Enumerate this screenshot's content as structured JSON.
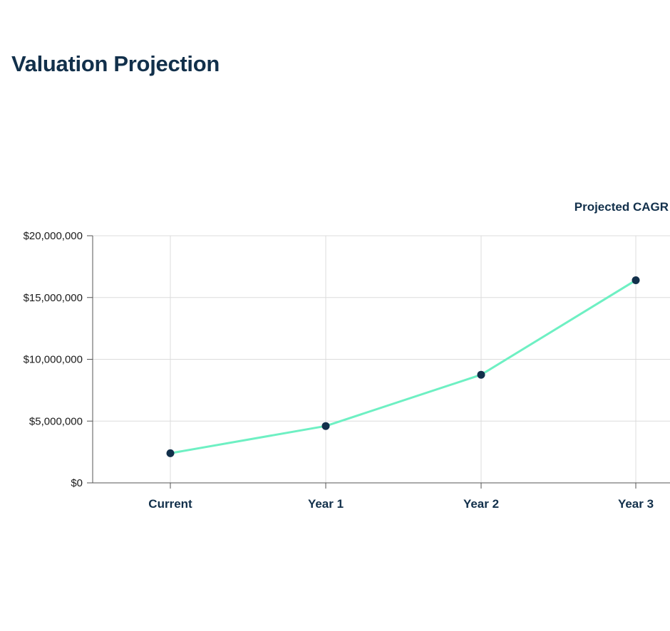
{
  "header": {
    "title": "Valuation Projection"
  },
  "legend": {
    "cagr_label": "Projected CAGR"
  },
  "chart_data": {
    "type": "line",
    "categories": [
      "Current",
      "Year 1",
      "Year 2",
      "Year 3"
    ],
    "series": [
      {
        "values": [
          2400000,
          4600000,
          8750000,
          16400000
        ],
        "color": "#6ef0c3",
        "marker_color": "#12304b"
      }
    ],
    "y_ticks": [
      0,
      5000000,
      10000000,
      15000000,
      20000000
    ],
    "y_tick_labels": [
      "$0",
      "$5,000,000",
      "$10,000,000",
      "$15,000,000",
      "$20,000,000"
    ],
    "ylim": [
      0,
      20000000
    ],
    "xlabel": "",
    "ylabel": "",
    "grid": true
  }
}
